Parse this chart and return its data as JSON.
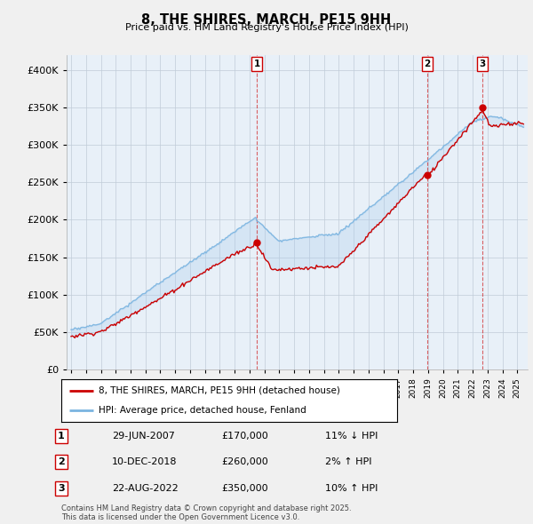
{
  "title": "8, THE SHIRES, MARCH, PE15 9HH",
  "subtitle": "Price paid vs. HM Land Registry's House Price Index (HPI)",
  "ylim": [
    0,
    420000
  ],
  "yticks": [
    0,
    50000,
    100000,
    150000,
    200000,
    250000,
    300000,
    350000,
    400000
  ],
  "ytick_labels": [
    "£0",
    "£50K",
    "£100K",
    "£150K",
    "£200K",
    "£250K",
    "£300K",
    "£350K",
    "£400K"
  ],
  "red_color": "#cc0000",
  "blue_color": "#7ab4e0",
  "fill_color": "#ddeeff",
  "plot_bg_color": "#e8f0f8",
  "sale_year_map": {
    "2007-06-29": 2007.49,
    "2018-12-10": 2018.94,
    "2022-08-22": 2022.64
  },
  "sale_dates": [
    "2007-06-29",
    "2018-12-10",
    "2022-08-22"
  ],
  "sale_prices": [
    170000,
    260000,
    350000
  ],
  "sale_labels": [
    "1",
    "2",
    "3"
  ],
  "legend_line1": "8, THE SHIRES, MARCH, PE15 9HH (detached house)",
  "legend_line2": "HPI: Average price, detached house, Fenland",
  "table_rows": [
    [
      "1",
      "29-JUN-2007",
      "£170,000",
      "11% ↓ HPI"
    ],
    [
      "2",
      "10-DEC-2018",
      "£260,000",
      "2% ↑ HPI"
    ],
    [
      "3",
      "22-AUG-2022",
      "£350,000",
      "10% ↑ HPI"
    ]
  ],
  "footnote": "Contains HM Land Registry data © Crown copyright and database right 2025.\nThis data is licensed under the Open Government Licence v3.0.",
  "bg_color": "#f0f0f0"
}
